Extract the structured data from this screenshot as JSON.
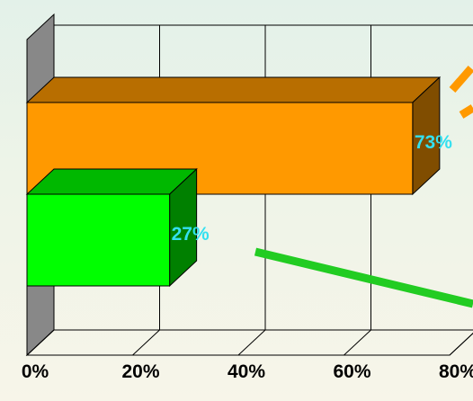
{
  "chart_data": {
    "type": "bar",
    "orientation": "horizontal",
    "style": "3d",
    "categories": [
      "",
      ""
    ],
    "values": [
      73,
      27
    ],
    "data_labels": [
      "73%",
      "27%"
    ],
    "bar_colors": [
      "#ff9900",
      "#00ff00"
    ],
    "xlim": [
      0,
      80
    ],
    "x_ticks": [
      "0%",
      "20%",
      "40%",
      "60%",
      "80%"
    ],
    "grid": true,
    "title": "",
    "xlabel": "",
    "ylabel": "",
    "data_label_color": "#33e0f0",
    "arrows": [
      {
        "color": "#ff9900"
      },
      {
        "color": "#22cc22"
      }
    ]
  }
}
